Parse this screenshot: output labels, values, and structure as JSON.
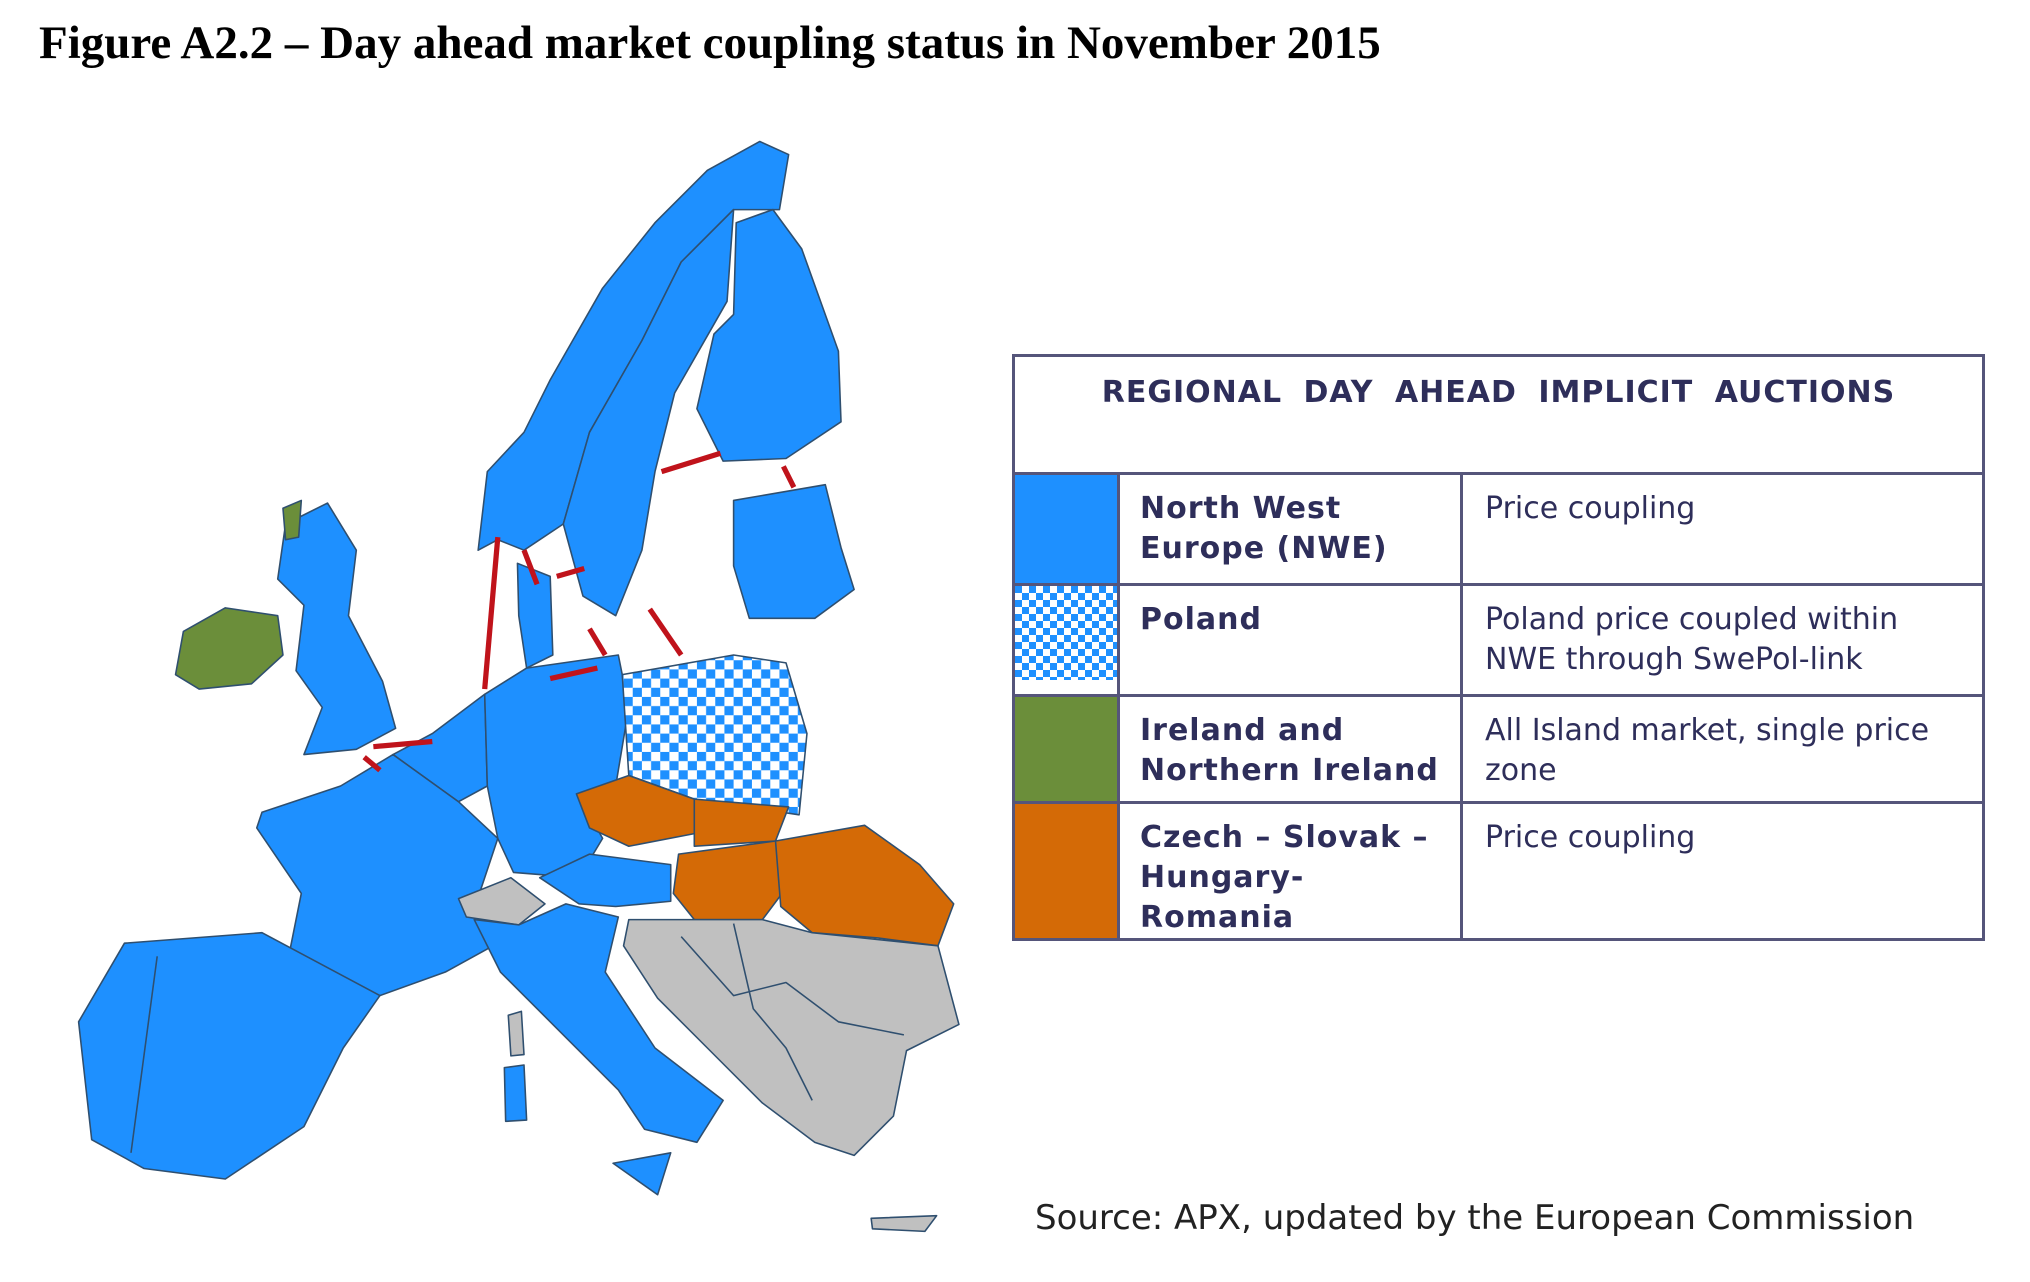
{
  "title": "Figure A2.2 – Day ahead market coupling status in November 2015",
  "legend": {
    "header": "REGIONAL DAY AHEAD IMPLICIT AUCTIONS",
    "rows": [
      {
        "label": "North West Europe (NWE)",
        "description": "Price coupling"
      },
      {
        "label": "Poland",
        "description": "Poland price coupled within NWE through SwePol-link"
      },
      {
        "label": "Ireland and Northern Ireland",
        "description": "All Island market, single price zone"
      },
      {
        "label": "Czech – Slovak – Hungary-Romania",
        "description": "Price coupling"
      }
    ]
  },
  "source": "Source: APX, updated by the European Commission"
}
